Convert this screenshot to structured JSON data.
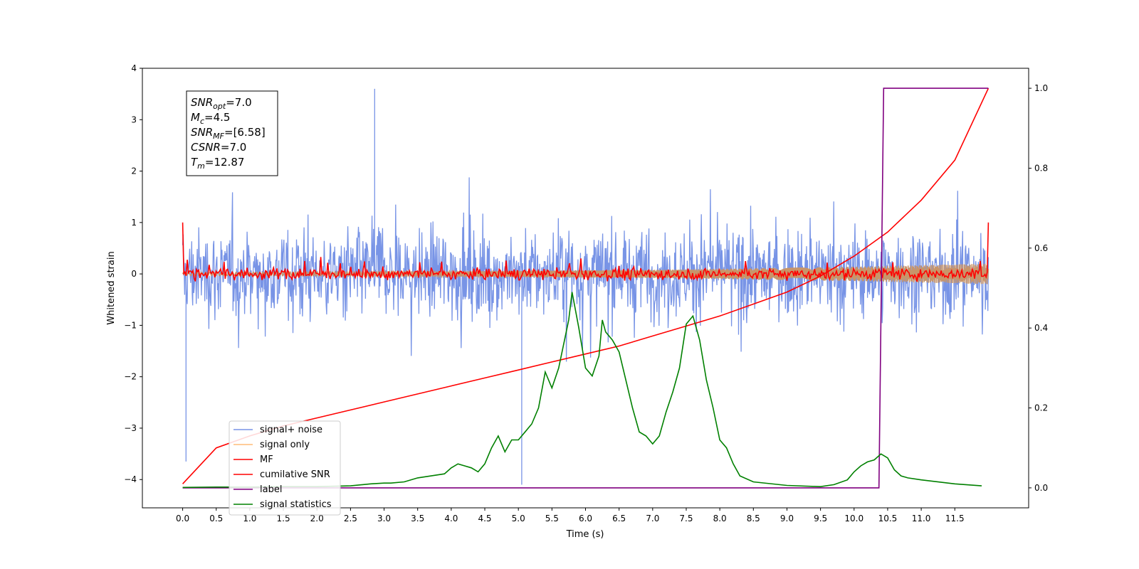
{
  "chart_data": {
    "type": "line",
    "xlabel": "Time (s)",
    "ylabel": "Whitened strain",
    "xlim": [
      -0.6,
      12.6
    ],
    "ylim": [
      -4.55,
      4.0
    ],
    "y2lim": [
      -0.05,
      1.05
    ],
    "x_ticks": [
      "0.0",
      "0.5",
      "1.0",
      "1.5",
      "2.0",
      "2.5",
      "3.0",
      "3.5",
      "4.0",
      "4.5",
      "5.0",
      "5.5",
      "6.0",
      "6.5",
      "7.0",
      "7.5",
      "8.0",
      "8.5",
      "9.0",
      "9.5",
      "10.0",
      "10.5",
      "11.0",
      "11.5"
    ],
    "y_ticks": [
      "4",
      "3",
      "2",
      "1",
      "0",
      "−1",
      "−2",
      "−3",
      "−4"
    ],
    "y2_ticks": [
      "1.0",
      "0.8",
      "0.6",
      "0.4",
      "0.2",
      "0.0"
    ],
    "grid": false,
    "legend_position": "lower-left",
    "annotation": {
      "lines": [
        {
          "label": "SNR",
          "sub": "opt",
          "value": "=7.0"
        },
        {
          "label": "M",
          "sub": "c",
          "value": "=4.5"
        },
        {
          "label": "SNR",
          "sub": "MF",
          "value": "=[6.58]"
        },
        {
          "label": "CSNR",
          "sub": "",
          "value": "=7.0"
        },
        {
          "label": "T",
          "sub": "m",
          "value": "=12.87"
        }
      ]
    },
    "series": [
      {
        "name": "signal+ noise",
        "color": "#7894e6",
        "axis": "left",
        "description_range": [
          -2.0,
          2.4
        ],
        "peaks": [
          {
            "x": 0.05,
            "y": -3.65
          },
          {
            "x": 2.86,
            "y": 3.6
          },
          {
            "x": 5.05,
            "y": -4.1
          },
          {
            "x": 5.05,
            "y": -1.5
          }
        ]
      },
      {
        "name": "signal only",
        "color": "#ffbb78",
        "axis": "left",
        "x": [
          0.0,
          1.0,
          2.0,
          3.0,
          4.0,
          5.0,
          6.0,
          7.0,
          8.0,
          9.0,
          10.0,
          11.0,
          12.0
        ],
        "amplitude": [
          0.03,
          0.035,
          0.04,
          0.045,
          0.05,
          0.06,
          0.07,
          0.08,
          0.1,
          0.12,
          0.14,
          0.17,
          0.2
        ]
      },
      {
        "name": "MF",
        "color": "#ff0000",
        "axis": "left",
        "endpoints": [
          {
            "x": 0.0,
            "y": 1.0
          },
          {
            "x": 12.0,
            "y": 1.0
          }
        ]
      },
      {
        "name": "cumilative SNR",
        "color": "#ff0000",
        "axis": "right",
        "x": [
          0.0,
          0.5,
          1.0,
          1.5,
          2.0,
          2.5,
          3.0,
          3.5,
          4.0,
          4.5,
          5.0,
          5.5,
          6.0,
          6.5,
          7.0,
          7.5,
          8.0,
          8.5,
          9.0,
          9.5,
          10.0,
          10.5,
          11.0,
          11.5,
          12.0
        ],
        "y": [
          0.01,
          0.1,
          0.13,
          0.155,
          0.175,
          0.195,
          0.215,
          0.235,
          0.255,
          0.275,
          0.295,
          0.315,
          0.335,
          0.355,
          0.38,
          0.405,
          0.43,
          0.46,
          0.49,
          0.53,
          0.58,
          0.64,
          0.72,
          0.82,
          1.0
        ]
      },
      {
        "name": "label",
        "color": "#800080",
        "axis": "right",
        "x": [
          0.0,
          10.37,
          10.44,
          12.0
        ],
        "y": [
          0.0,
          0.0,
          1.0,
          1.0
        ]
      },
      {
        "name": "signal statistics",
        "color": "#008000",
        "axis": "right",
        "x": [
          0.0,
          0.5,
          1.0,
          1.5,
          2.0,
          2.5,
          2.8,
          3.0,
          3.1,
          3.3,
          3.5,
          3.7,
          3.9,
          4.0,
          4.1,
          4.2,
          4.3,
          4.4,
          4.5,
          4.6,
          4.7,
          4.8,
          4.9,
          5.0,
          5.1,
          5.2,
          5.3,
          5.4,
          5.5,
          5.6,
          5.7,
          5.75,
          5.8,
          5.9,
          6.0,
          6.1,
          6.2,
          6.25,
          6.3,
          6.4,
          6.5,
          6.6,
          6.7,
          6.8,
          6.9,
          7.0,
          7.1,
          7.2,
          7.3,
          7.4,
          7.5,
          7.6,
          7.7,
          7.8,
          7.9,
          8.0,
          8.1,
          8.2,
          8.3,
          8.5,
          9.0,
          9.5,
          9.7,
          9.9,
          10.0,
          10.1,
          10.2,
          10.3,
          10.4,
          10.5,
          10.6,
          10.7,
          10.8,
          11.0,
          11.5,
          11.9
        ],
        "y": [
          0.001,
          0.002,
          0.002,
          0.003,
          0.003,
          0.005,
          0.01,
          0.012,
          0.012,
          0.015,
          0.025,
          0.03,
          0.035,
          0.05,
          0.06,
          0.055,
          0.05,
          0.04,
          0.06,
          0.1,
          0.13,
          0.09,
          0.12,
          0.12,
          0.14,
          0.16,
          0.2,
          0.29,
          0.25,
          0.3,
          0.38,
          0.42,
          0.49,
          0.4,
          0.3,
          0.28,
          0.33,
          0.42,
          0.39,
          0.37,
          0.34,
          0.27,
          0.2,
          0.14,
          0.13,
          0.11,
          0.13,
          0.19,
          0.24,
          0.3,
          0.41,
          0.43,
          0.37,
          0.27,
          0.2,
          0.12,
          0.1,
          0.06,
          0.03,
          0.015,
          0.006,
          0.003,
          0.008,
          0.02,
          0.04,
          0.055,
          0.065,
          0.07,
          0.085,
          0.075,
          0.045,
          0.03,
          0.025,
          0.02,
          0.01,
          0.005
        ]
      }
    ]
  }
}
